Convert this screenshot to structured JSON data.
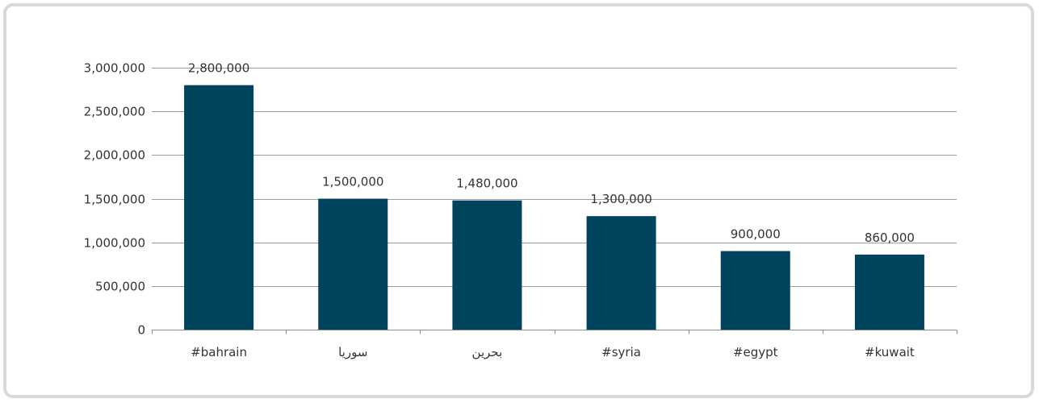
{
  "chart_data": {
    "type": "bar",
    "categories": [
      "#bahrain",
      "سوريا",
      "بحرين",
      "#syria",
      "#egypt",
      "#kuwait"
    ],
    "values": [
      2800000,
      1500000,
      1480000,
      1300000,
      900000,
      860000
    ],
    "data_labels": [
      "2,800,000",
      "1,500,000",
      "1,480,000",
      "1,300,000",
      "900,000",
      "860,000"
    ],
    "y_ticks": [
      0,
      500000,
      1000000,
      1500000,
      2000000,
      2500000,
      3000000
    ],
    "y_tick_labels": [
      "0",
      "500,000",
      "1,000,000",
      "1,500,000",
      "2,000,000",
      "2,500,000",
      "3,000,000"
    ],
    "ylim": [
      0,
      3000000
    ],
    "grid": true,
    "bar_color": "#00435c",
    "title": "",
    "xlabel": "",
    "ylabel": ""
  }
}
